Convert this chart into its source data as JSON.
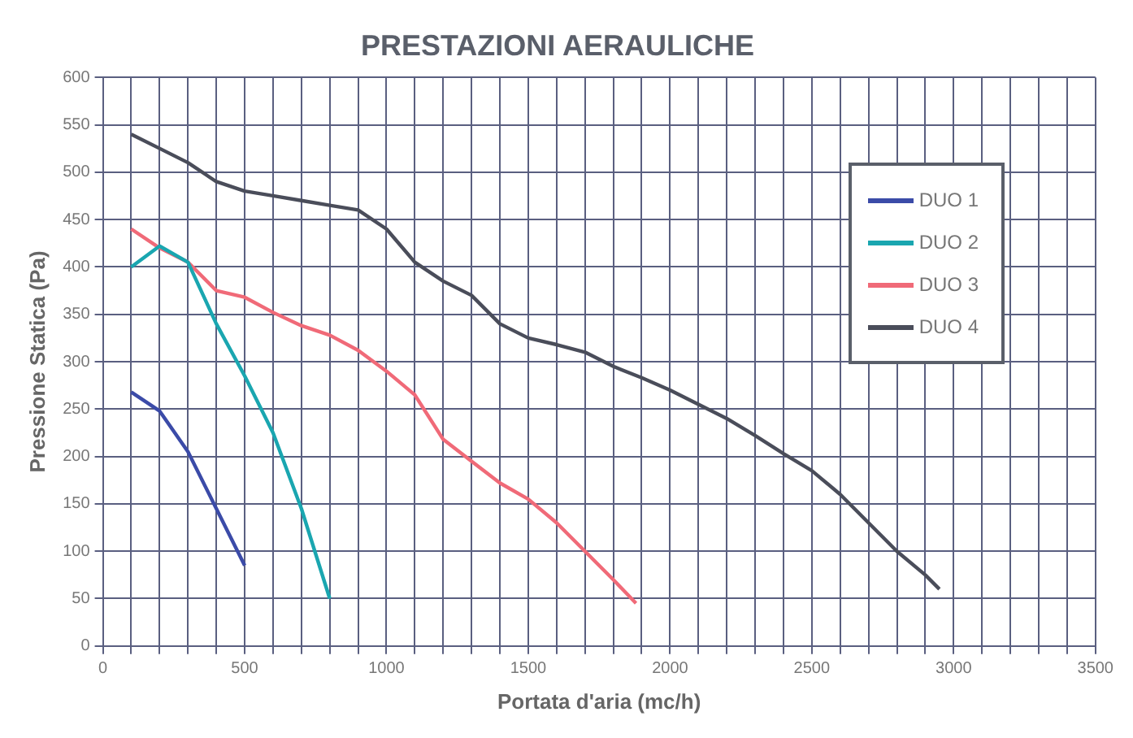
{
  "chart_data": {
    "type": "line",
    "title": "PRESTAZIONI AERAULICHE",
    "xlabel": "Portata d'aria (mc/h)",
    "ylabel": "Pressione Statica (Pa)",
    "xlim": [
      0,
      3500
    ],
    "ylim": [
      0,
      600
    ],
    "xticks": [
      0,
      {
        "value": 100,
        "label": null
      },
      {
        "value": 200,
        "label": null
      },
      {
        "value": 300,
        "label": null
      },
      {
        "value": 400,
        "label": null
      },
      500,
      {
        "value": 600,
        "label": null
      },
      {
        "value": 700,
        "label": null
      },
      {
        "value": 800,
        "label": null
      },
      {
        "value": 900,
        "label": null
      },
      1000,
      {
        "value": 1100,
        "label": null
      },
      {
        "value": 1200,
        "label": null
      },
      {
        "value": 1300,
        "label": null
      },
      {
        "value": 1400,
        "label": null
      },
      1500,
      {
        "value": 1600,
        "label": null
      },
      {
        "value": 1700,
        "label": null
      },
      {
        "value": 1800,
        "label": null
      },
      {
        "value": 1900,
        "label": null
      },
      2000,
      {
        "value": 2100,
        "label": null
      },
      {
        "value": 2200,
        "label": null
      },
      {
        "value": 2300,
        "label": null
      },
      {
        "value": 2400,
        "label": null
      },
      2500,
      {
        "value": 2600,
        "label": null
      },
      {
        "value": 2700,
        "label": null
      },
      {
        "value": 2800,
        "label": null
      },
      {
        "value": 2900,
        "label": null
      },
      3000,
      {
        "value": 3100,
        "label": null
      },
      {
        "value": 3200,
        "label": null
      },
      {
        "value": 3300,
        "label": null
      },
      {
        "value": 3400,
        "label": null
      },
      3500
    ],
    "yticks": [
      0,
      50,
      100,
      150,
      200,
      250,
      300,
      350,
      400,
      450,
      500,
      550,
      600
    ],
    "grid": true,
    "legend": "top right",
    "series": [
      {
        "name": "DUO 1",
        "color": "#3b4ba8",
        "x": [
          100,
          200,
          300,
          400,
          500
        ],
        "values": [
          268,
          248,
          205,
          145,
          85
        ]
      },
      {
        "name": "DUO 2",
        "color": "#1aa6b0",
        "x": [
          100,
          200,
          300,
          400,
          500,
          600,
          700,
          800
        ],
        "values": [
          400,
          422,
          405,
          340,
          285,
          225,
          145,
          50
        ]
      },
      {
        "name": "DUO 3",
        "color": "#f06a78",
        "x": [
          100,
          200,
          300,
          400,
          500,
          600,
          700,
          800,
          900,
          1000,
          1100,
          1200,
          1300,
          1400,
          1500,
          1600,
          1700,
          1800,
          1880
        ],
        "values": [
          440,
          420,
          405,
          375,
          368,
          352,
          338,
          328,
          312,
          290,
          265,
          218,
          195,
          172,
          155,
          130,
          100,
          70,
          45
        ]
      },
      {
        "name": "DUO 4",
        "color": "#4a4d5a",
        "x": [
          100,
          200,
          300,
          400,
          500,
          600,
          700,
          800,
          900,
          1000,
          1100,
          1200,
          1300,
          1400,
          1500,
          1600,
          1700,
          1800,
          1900,
          2000,
          2100,
          2200,
          2300,
          2400,
          2500,
          2600,
          2700,
          2800,
          2900,
          2950
        ],
        "values": [
          540,
          525,
          510,
          490,
          480,
          475,
          470,
          465,
          460,
          440,
          405,
          385,
          370,
          340,
          325,
          318,
          310,
          295,
          283,
          270,
          255,
          240,
          222,
          203,
          185,
          160,
          130,
          100,
          75,
          60
        ]
      }
    ]
  }
}
